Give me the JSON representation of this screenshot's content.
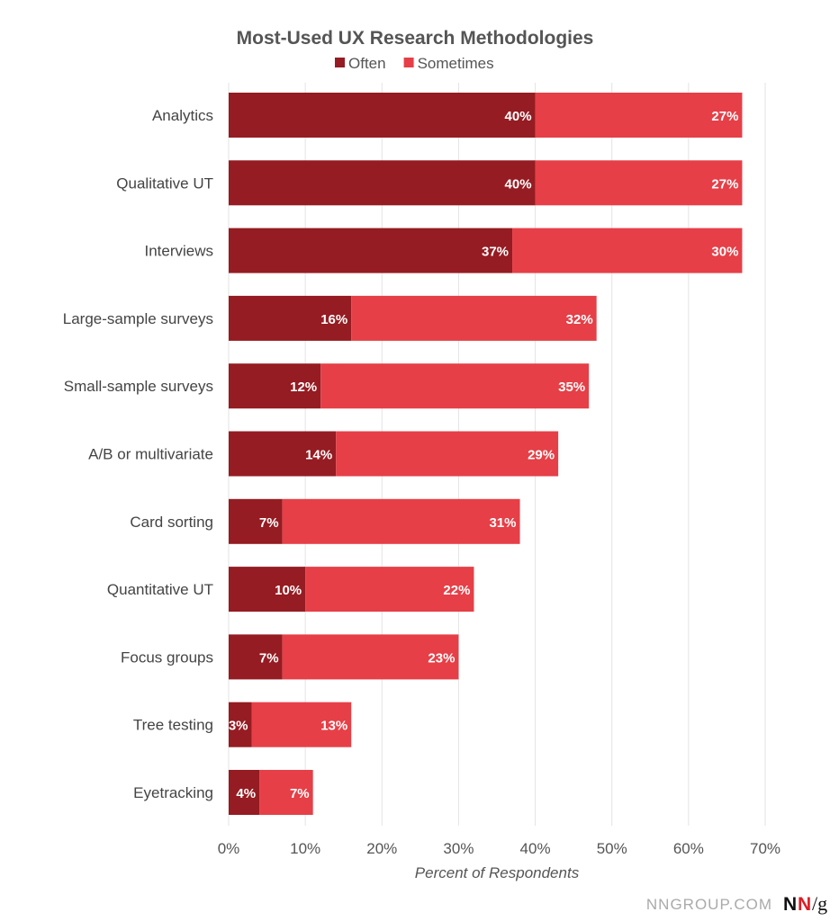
{
  "chart_data": {
    "type": "bar",
    "orientation": "horizontal",
    "stacked": true,
    "title": "Most-Used UX Research Methodologies",
    "xlabel": "Percent of Respondents",
    "ylabel": "",
    "xlim": [
      0,
      70
    ],
    "xticks": [
      "0%",
      "10%",
      "20%",
      "30%",
      "40%",
      "50%",
      "60%",
      "70%"
    ],
    "grid": "vertical",
    "legend_position": "top",
    "categories": [
      "Analytics",
      "Qualitative UT",
      "Interviews",
      "Large-sample surveys",
      "Small-sample surveys",
      "A/B or multivariate",
      "Card sorting",
      "Quantitative UT",
      "Focus groups",
      "Tree testing",
      "Eyetracking"
    ],
    "series": [
      {
        "name": "Often",
        "color": "#951c22",
        "values": [
          40,
          40,
          37,
          16,
          12,
          14,
          7,
          10,
          7,
          3,
          4
        ],
        "labels": [
          "40%",
          "40%",
          "37%",
          "16%",
          "12%",
          "14%",
          "7%",
          "10%",
          "7%",
          "3%",
          "4%"
        ]
      },
      {
        "name": "Sometimes",
        "color": "#e63f47",
        "values": [
          27,
          27,
          30,
          32,
          35,
          29,
          31,
          22,
          23,
          13,
          7
        ],
        "labels": [
          "27%",
          "27%",
          "30%",
          "32%",
          "35%",
          "29%",
          "31%",
          "22%",
          "23%",
          "13%",
          "7%"
        ]
      }
    ]
  },
  "footer": {
    "source": "NNGROUP.COM",
    "logo": "NN/g"
  }
}
